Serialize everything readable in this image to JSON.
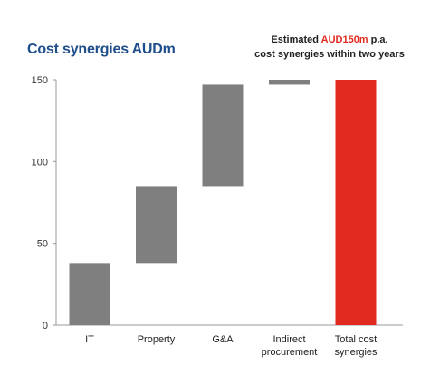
{
  "title": "Cost synergies AUDm",
  "note": {
    "prefix": "Estimated ",
    "highlight": "AUD150m",
    "suffix": " p.a.",
    "line2": "cost synergies within two years"
  },
  "colors": {
    "bar": "#7f7f7f",
    "total": "#e0291f",
    "title": "#1f4e8c"
  },
  "chart_data": {
    "type": "bar",
    "subtype": "waterfall",
    "title": "Cost synergies AUDm",
    "categories": [
      [
        "IT"
      ],
      [
        "Property"
      ],
      [
        "G&A"
      ],
      [
        "Indirect",
        "procurement"
      ],
      [
        "Total cost",
        "synergies"
      ]
    ],
    "bars": [
      {
        "category": "IT",
        "base": 0,
        "top": 38,
        "value": 38
      },
      {
        "category": "Property",
        "base": 38,
        "top": 85,
        "value": 47
      },
      {
        "category": "G&A",
        "base": 85,
        "top": 147,
        "value": 62
      },
      {
        "category": "Indirect procurement",
        "base": 147,
        "top": 150,
        "value": 3
      },
      {
        "category": "Total cost synergies",
        "base": 0,
        "top": 150,
        "value": 150,
        "total": true
      }
    ],
    "ylim": [
      0,
      150
    ],
    "yticks": [
      0,
      50,
      100,
      150
    ],
    "grid": false
  }
}
